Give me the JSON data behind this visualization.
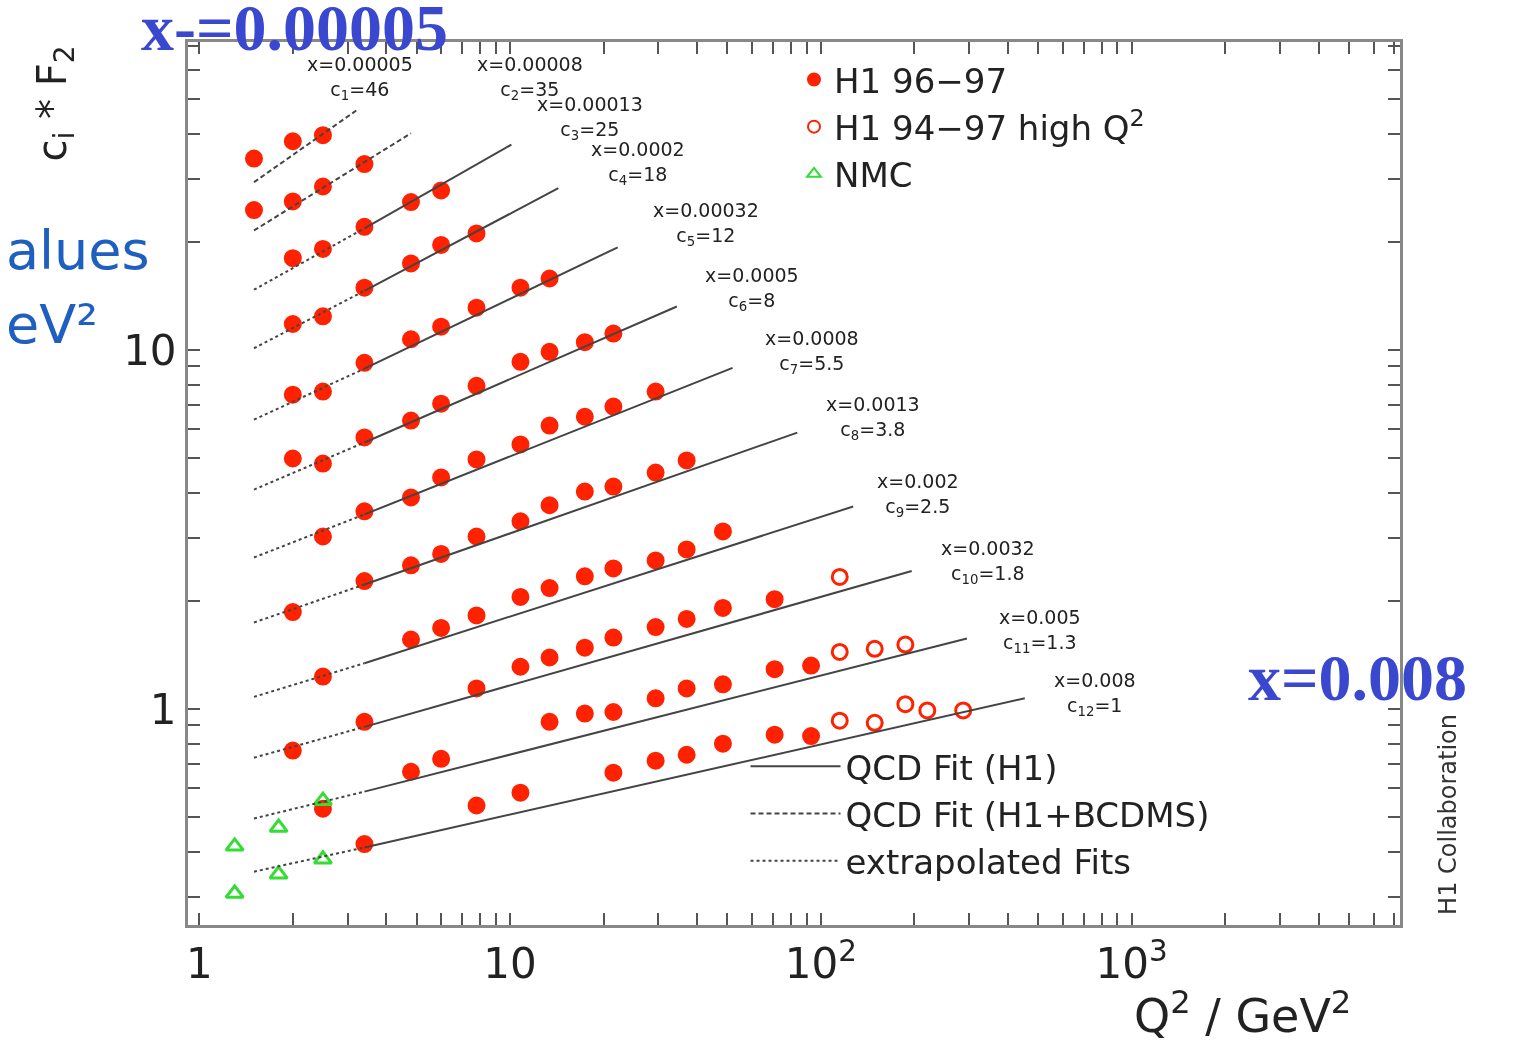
{
  "chart_data": {
    "type": "scatter",
    "log": "xy",
    "grid": false,
    "legend": "top right",
    "ylabel": "c$_{i}$ * F$_{2}$",
    "xlabel": "Q$^{2}$ / GeV$^{2}$",
    "xlim": [
      0.92,
      7300
    ],
    "ylim": [
      0.25,
      72
    ],
    "xticks": [
      1,
      10,
      {
        "value": 100,
        "label": "10$^{2}$"
      },
      {
        "value": 1000,
        "label": "10$^{3}$"
      },
      {
        "value": 2,
        "label": null
      },
      {
        "value": 3,
        "label": null
      },
      {
        "value": 4,
        "label": null
      },
      {
        "value": 5,
        "label": null
      },
      {
        "value": 6,
        "label": null
      },
      {
        "value": 7,
        "label": null
      },
      {
        "value": 8,
        "label": null
      },
      {
        "value": 9,
        "label": null
      },
      {
        "value": 20,
        "label": null
      },
      {
        "value": 30,
        "label": null
      },
      {
        "value": 40,
        "label": null
      },
      {
        "value": 50,
        "label": null
      },
      {
        "value": 60,
        "label": null
      },
      {
        "value": 70,
        "label": null
      },
      {
        "value": 80,
        "label": null
      },
      {
        "value": 90,
        "label": null
      },
      {
        "value": 200,
        "label": null
      },
      {
        "value": 300,
        "label": null
      },
      {
        "value": 400,
        "label": null
      },
      {
        "value": 500,
        "label": null
      },
      {
        "value": 600,
        "label": null
      },
      {
        "value": 700,
        "label": null
      },
      {
        "value": 800,
        "label": null
      },
      {
        "value": 900,
        "label": null
      },
      {
        "value": 2000,
        "label": null
      },
      {
        "value": 3000,
        "label": null
      },
      {
        "value": 4000,
        "label": null
      },
      {
        "value": 5000,
        "label": null
      },
      {
        "value": 6000,
        "label": null
      },
      {
        "value": 7000,
        "label": null
      }
    ],
    "yticks": [
      1,
      10,
      {
        "value": 0.3,
        "label": null
      },
      {
        "value": 0.4,
        "label": null
      },
      {
        "value": 0.5,
        "label": null
      },
      {
        "value": 0.6,
        "label": null
      },
      {
        "value": 0.7,
        "label": null
      },
      {
        "value": 0.8,
        "label": null
      },
      {
        "value": 0.9,
        "label": null
      },
      {
        "value": 2,
        "label": null
      },
      {
        "value": 3,
        "label": null
      },
      {
        "value": 4,
        "label": null
      },
      {
        "value": 5,
        "label": null
      },
      {
        "value": 6,
        "label": null
      },
      {
        "value": 7,
        "label": null
      },
      {
        "value": 8,
        "label": null
      },
      {
        "value": 9,
        "label": null
      },
      {
        "value": 20,
        "label": null
      },
      {
        "value": 30,
        "label": null
      },
      {
        "value": 40,
        "label": null
      },
      {
        "value": 50,
        "label": null
      },
      {
        "value": 60,
        "label": null
      },
      {
        "value": 70,
        "label": null
      }
    ],
    "series": [
      {
        "name": "H1 96−97",
        "marker": "circle",
        "color": "#ff2200",
        "x": [
          1.5,
          2,
          2.5,
          1.5,
          2,
          2.5,
          3.4,
          2,
          2.5,
          3.4,
          4.8,
          6,
          2,
          2.5,
          3.4,
          4.8,
          6,
          7.8,
          2,
          2.5,
          3.4,
          4.8,
          6,
          7.8,
          10.8,
          13.4,
          2,
          2.5,
          3.4,
          4.8,
          6,
          7.8,
          10.8,
          13.4,
          17.4,
          21.5,
          2.5,
          3.4,
          4.8,
          6,
          7.8,
          10.8,
          13.4,
          17.4,
          21.5,
          29.4,
          2,
          3.4,
          4.8,
          6,
          7.8,
          10.8,
          13.4,
          17.4,
          21.5,
          29.4,
          37,
          2.5,
          4.8,
          6,
          7.8,
          10.8,
          13.4,
          17.4,
          21.5,
          29.4,
          37,
          48.4,
          2,
          3.4,
          7.8,
          10.8,
          13.4,
          17.4,
          21.5,
          29.4,
          37,
          48.4,
          71,
          2.5,
          4.8,
          6,
          13.4,
          17.4,
          21.5,
          29.4,
          37,
          48.4,
          71,
          93,
          3.4,
          7.8,
          10.8,
          21.5,
          29.4,
          37,
          48.4,
          71,
          93
        ],
        "values": [
          34.1,
          38.1,
          39.6,
          24.5,
          25.9,
          28.5,
          32.9,
          18.0,
          19.1,
          22.0,
          25.8,
          27.8,
          11.8,
          12.4,
          14.9,
          17.4,
          19.6,
          21.1,
          7.5,
          7.65,
          9.2,
          10.7,
          11.6,
          13.1,
          14.9,
          15.8,
          4.98,
          4.82,
          5.7,
          6.35,
          7.08,
          7.94,
          9.26,
          9.87,
          10.5,
          11.1,
          3.02,
          3.55,
          3.88,
          4.41,
          4.95,
          5.45,
          6.15,
          6.51,
          6.95,
          7.65,
          1.86,
          2.27,
          2.51,
          2.7,
          3.02,
          3.33,
          3.69,
          4.03,
          4.16,
          4.55,
          4.92,
          1.23,
          1.56,
          1.68,
          1.82,
          2.05,
          2.17,
          2.34,
          2.46,
          2.59,
          2.78,
          3.12,
          0.765,
          0.92,
          1.14,
          1.31,
          1.39,
          1.48,
          1.58,
          1.69,
          1.78,
          1.91,
          2.02,
          0.527,
          0.668,
          0.726,
          0.92,
          0.97,
          0.98,
          1.07,
          1.14,
          1.17,
          1.29,
          1.32,
          0.42,
          0.538,
          0.584,
          0.664,
          0.717,
          0.745,
          0.8,
          0.847,
          0.84
        ]
      },
      {
        "name": "H1 94−97 high Q$^{2}$",
        "marker": "circle-open",
        "color": "#ff2200",
        "x": [
          115,
          115,
          149,
          187,
          115,
          149,
          187,
          220,
          287
        ],
        "values": [
          2.33,
          1.44,
          1.47,
          1.51,
          0.927,
          0.914,
          1.03,
          0.99,
          0.99
        ]
      },
      {
        "name": "NMC",
        "marker": "triangle-open",
        "color": "#33dd33",
        "x": [
          1.3,
          1.3,
          1.8,
          1.8,
          2.5,
          2.5
        ],
        "values": [
          0.414,
          0.306,
          0.467,
          0.346,
          0.555,
          0.381
        ]
      },
      {
        "name": "QCD Fit (H1)",
        "type": "line",
        "line_style": "solid",
        "color": "#444444",
        "x": [
          3.4,
          10.1
        ],
        "values": [
          21.8,
          37.3
        ]
      },
      {
        "type": "line",
        "line_style": "solid",
        "color": "#444444",
        "x": [
          3.4,
          14.3
        ],
        "values": [
          14.6,
          28.2
        ]
      },
      {
        "type": "line",
        "line_style": "solid",
        "color": "#444444",
        "x": [
          3.4,
          22.2
        ],
        "values": [
          8.86,
          19.3
        ]
      },
      {
        "type": "line",
        "line_style": "solid",
        "color": "#444444",
        "x": [
          3.4,
          34.4
        ],
        "values": [
          5.52,
          13.2
        ]
      },
      {
        "type": "line",
        "line_style": "solid",
        "color": "#444444",
        "x": [
          3.4,
          52
        ],
        "values": [
          3.48,
          8.91
        ]
      },
      {
        "type": "line",
        "line_style": "solid",
        "color": "#444444",
        "x": [
          3.4,
          84
        ],
        "values": [
          2.22,
          5.88
        ]
      },
      {
        "type": "line",
        "line_style": "solid",
        "color": "#444444",
        "x": [
          3.4,
          127
        ],
        "values": [
          1.34,
          3.66
        ]
      },
      {
        "type": "line",
        "line_style": "solid",
        "color": "#444444",
        "x": [
          3.4,
          196
        ],
        "values": [
          0.891,
          2.42
        ]
      },
      {
        "type": "line",
        "line_style": "solid",
        "color": "#444444",
        "x": [
          3.4,
          295
        ],
        "values": [
          0.588,
          1.57
        ]
      },
      {
        "type": "line",
        "line_style": "solid",
        "color": "#444444",
        "x": [
          3.4,
          453
        ],
        "values": [
          0.411,
          1.07
        ]
      },
      {
        "name": "QCD Fit (H1+BCDMS)",
        "type": "line",
        "line_style": "dashed",
        "color": "#444444",
        "x": [
          1.5,
          3.2
        ],
        "values": [
          29.3,
          46.4
        ]
      },
      {
        "type": "line",
        "line_style": "dashed",
        "color": "#444444",
        "x": [
          1.5,
          4.8
        ],
        "values": [
          21.5,
          40.1
        ]
      },
      {
        "name": "extrapolated Fits",
        "type": "line",
        "line_style": "dotted",
        "color": "#444444",
        "x": [
          1.5,
          3.4
        ],
        "values": [
          14.7,
          21.8
        ]
      },
      {
        "type": "line",
        "line_style": "dotted",
        "color": "#444444",
        "x": [
          1.5,
          3.4
        ],
        "values": [
          10.1,
          14.6
        ]
      },
      {
        "type": "line",
        "line_style": "dotted",
        "color": "#444444",
        "x": [
          1.5,
          3.4
        ],
        "values": [
          6.39,
          8.86
        ]
      },
      {
        "type": "line",
        "line_style": "dotted",
        "color": "#444444",
        "x": [
          1.5,
          3.4
        ],
        "values": [
          4.08,
          5.52
        ]
      },
      {
        "type": "line",
        "line_style": "dotted",
        "color": "#444444",
        "x": [
          1.5,
          3.4
        ],
        "values": [
          2.64,
          3.48
        ]
      },
      {
        "type": "line",
        "line_style": "dotted",
        "color": "#444444",
        "x": [
          1.5,
          3.4
        ],
        "values": [
          1.74,
          2.22
        ]
      },
      {
        "type": "line",
        "line_style": "dotted",
        "color": "#444444",
        "x": [
          1.5,
          3.4
        ],
        "values": [
          1.08,
          1.34
        ]
      },
      {
        "type": "line",
        "line_style": "dotted",
        "color": "#444444",
        "x": [
          1.5,
          3.4
        ],
        "values": [
          0.731,
          0.891
        ]
      },
      {
        "type": "line",
        "line_style": "dotted",
        "color": "#444444",
        "x": [
          1.5,
          3.4
        ],
        "values": [
          0.495,
          0.588
        ]
      },
      {
        "type": "line",
        "line_style": "dotted",
        "color": "#444444",
        "x": [
          1.5,
          3.4
        ],
        "values": [
          0.352,
          0.411
        ]
      }
    ],
    "annotations": [
      "x=0.00005\nc$_{1}$=46",
      "x=0.00008\nc$_{2}$=35",
      "x=0.00013\nc$_{3}$=25",
      "x=0.0002\nc$_{4}$=18",
      "x=0.00032\nc$_{5}$=12",
      "x=0.0005\nc$_{6}$=8",
      "x=0.0008\nc$_{7}$=5.5",
      "x=0.0013\nc$_{8}$=3.8",
      "x=0.002\nc$_{9}$=2.5",
      "x=0.0032\nc$_{10}$=1.8",
      "x=0.005\nc$_{11}$=1.3",
      "x=0.008\nc$_{12}$=1",
      "x-=0.00005",
      "alues",
      "eV²",
      "x=0.008",
      "H1 Collaboration"
    ]
  }
}
